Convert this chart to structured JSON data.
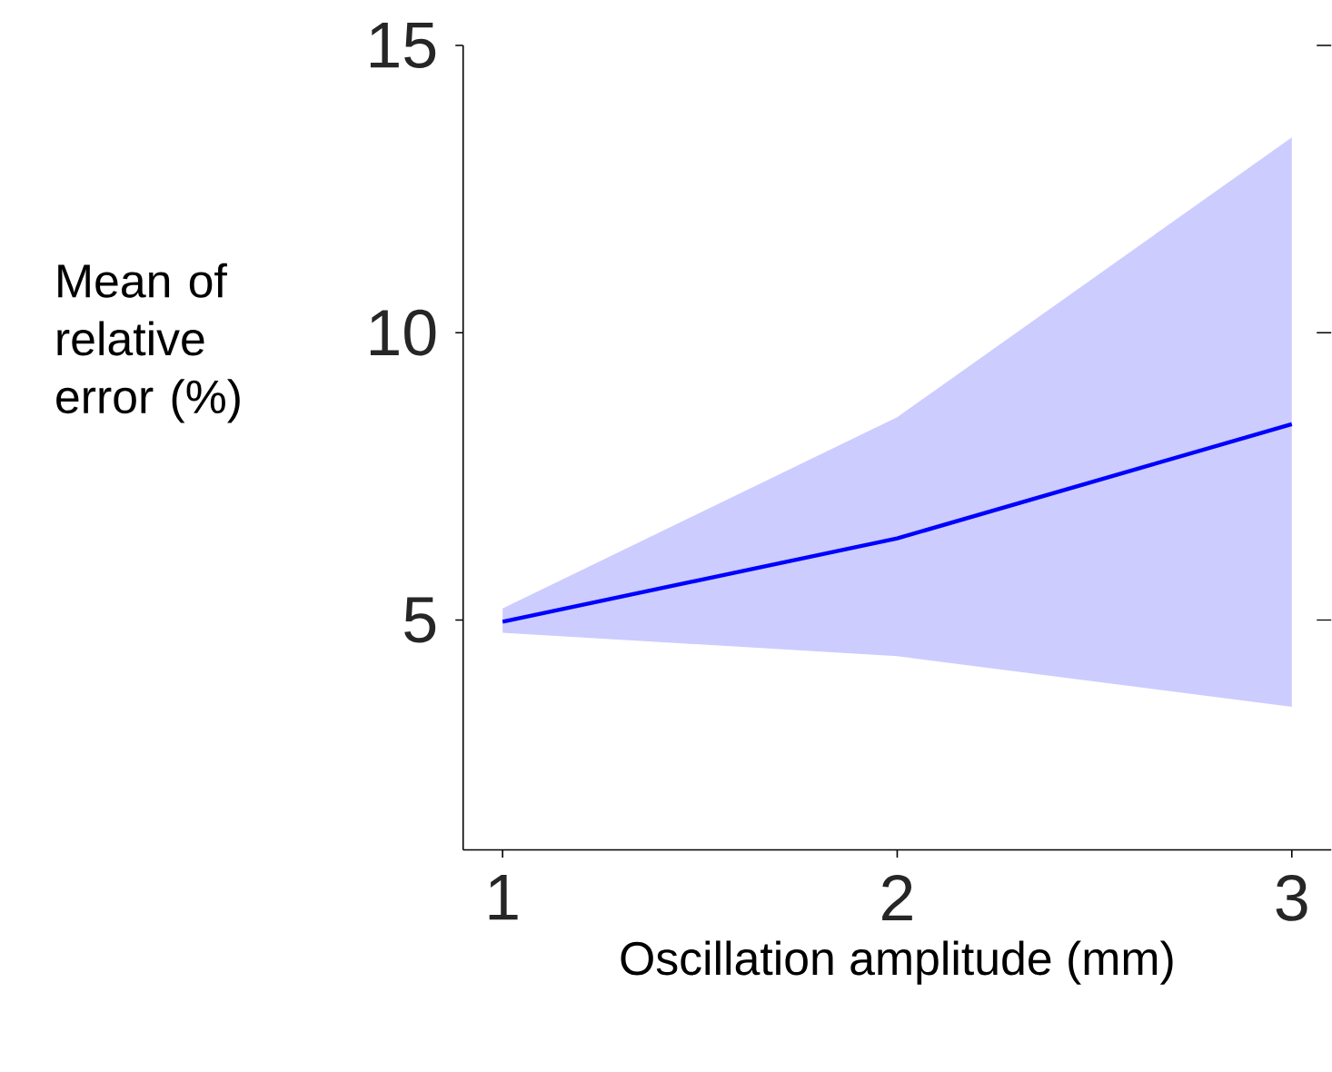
{
  "chart_data": {
    "type": "line",
    "xlabel": "Oscillation amplitude (mm)",
    "ylabel": "Mean of relative error (%)",
    "x": [
      1,
      2,
      3
    ],
    "series": [
      {
        "color": "#0000ff",
        "values": [
          4.97,
          6.42,
          8.41
        ],
        "lower": [
          4.78,
          4.37,
          3.49
        ],
        "upper": [
          5.2,
          8.53,
          13.4
        ]
      }
    ],
    "xlim": [
      0.9,
      3.1
    ],
    "ylim": [
      1,
      15
    ],
    "xticks": [
      1,
      2,
      3
    ],
    "yticks": [
      5,
      10,
      15
    ]
  }
}
